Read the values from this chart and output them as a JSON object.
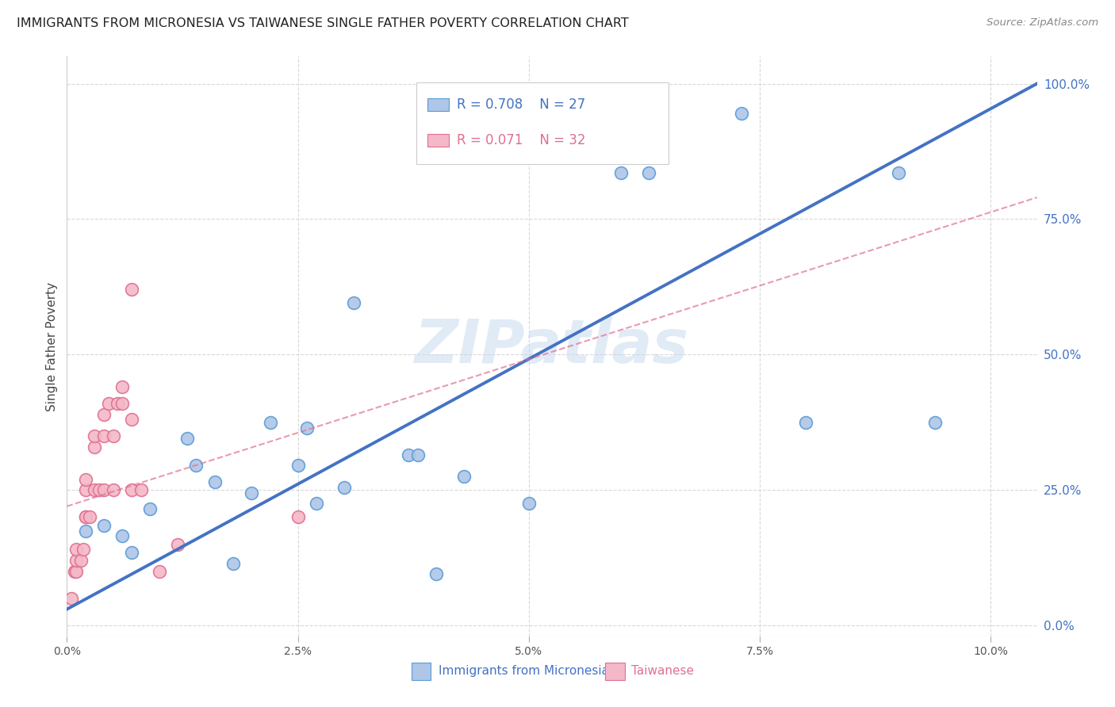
{
  "title": "IMMIGRANTS FROM MICRONESIA VS TAIWANESE SINGLE FATHER POVERTY CORRELATION CHART",
  "source": "Source: ZipAtlas.com",
  "ylabel": "Single Father Poverty",
  "ytick_labels": [
    "0.0%",
    "25.0%",
    "50.0%",
    "75.0%",
    "100.0%"
  ],
  "ytick_values": [
    0.0,
    0.25,
    0.5,
    0.75,
    1.0
  ],
  "xtick_labels": [
    "0.0%",
    "2.5%",
    "5.0%",
    "7.5%",
    "10.0%"
  ],
  "xtick_values": [
    0.0,
    0.025,
    0.05,
    0.075,
    0.1
  ],
  "xlim": [
    0.0,
    0.105
  ],
  "ylim": [
    -0.02,
    1.05
  ],
  "legend1_r": "0.708",
  "legend1_n": "27",
  "legend2_r": "0.071",
  "legend2_n": "32",
  "color_blue_fill": "#aec6e8",
  "color_pink_fill": "#f4b8c8",
  "color_blue_edge": "#5b9bd5",
  "color_pink_edge": "#e07090",
  "color_blue_line": "#4472c4",
  "color_pink_line": "#e07090",
  "color_blue_text": "#4472c4",
  "color_pink_text": "#e07090",
  "watermark_text": "ZIPatlas",
  "background_color": "#ffffff",
  "grid_color": "#d8d8d8",
  "blue_scatter_x": [
    0.002,
    0.004,
    0.006,
    0.007,
    0.009,
    0.013,
    0.014,
    0.016,
    0.018,
    0.02,
    0.022,
    0.025,
    0.026,
    0.027,
    0.03,
    0.031,
    0.037,
    0.038,
    0.04,
    0.043,
    0.05,
    0.06,
    0.063,
    0.073,
    0.08,
    0.09,
    0.094
  ],
  "blue_scatter_y": [
    0.175,
    0.185,
    0.165,
    0.135,
    0.215,
    0.345,
    0.295,
    0.265,
    0.115,
    0.245,
    0.375,
    0.295,
    0.365,
    0.225,
    0.255,
    0.595,
    0.315,
    0.315,
    0.095,
    0.275,
    0.225,
    0.835,
    0.835,
    0.945,
    0.375,
    0.835,
    0.375
  ],
  "pink_scatter_x": [
    0.0005,
    0.0008,
    0.001,
    0.001,
    0.001,
    0.0015,
    0.0018,
    0.002,
    0.002,
    0.002,
    0.002,
    0.0025,
    0.003,
    0.003,
    0.003,
    0.0035,
    0.004,
    0.004,
    0.004,
    0.0045,
    0.005,
    0.005,
    0.0055,
    0.006,
    0.006,
    0.007,
    0.007,
    0.007,
    0.008,
    0.01,
    0.012,
    0.025
  ],
  "pink_scatter_y": [
    0.05,
    0.1,
    0.1,
    0.12,
    0.14,
    0.12,
    0.14,
    0.2,
    0.2,
    0.25,
    0.27,
    0.2,
    0.25,
    0.33,
    0.35,
    0.25,
    0.25,
    0.35,
    0.39,
    0.41,
    0.25,
    0.35,
    0.41,
    0.41,
    0.44,
    0.25,
    0.38,
    0.62,
    0.25,
    0.1,
    0.15,
    0.2
  ],
  "blue_line_x": [
    0.0,
    0.105
  ],
  "blue_line_y": [
    0.03,
    1.0
  ],
  "pink_line_x": [
    0.0,
    0.105
  ],
  "pink_line_y": [
    0.22,
    0.79
  ]
}
